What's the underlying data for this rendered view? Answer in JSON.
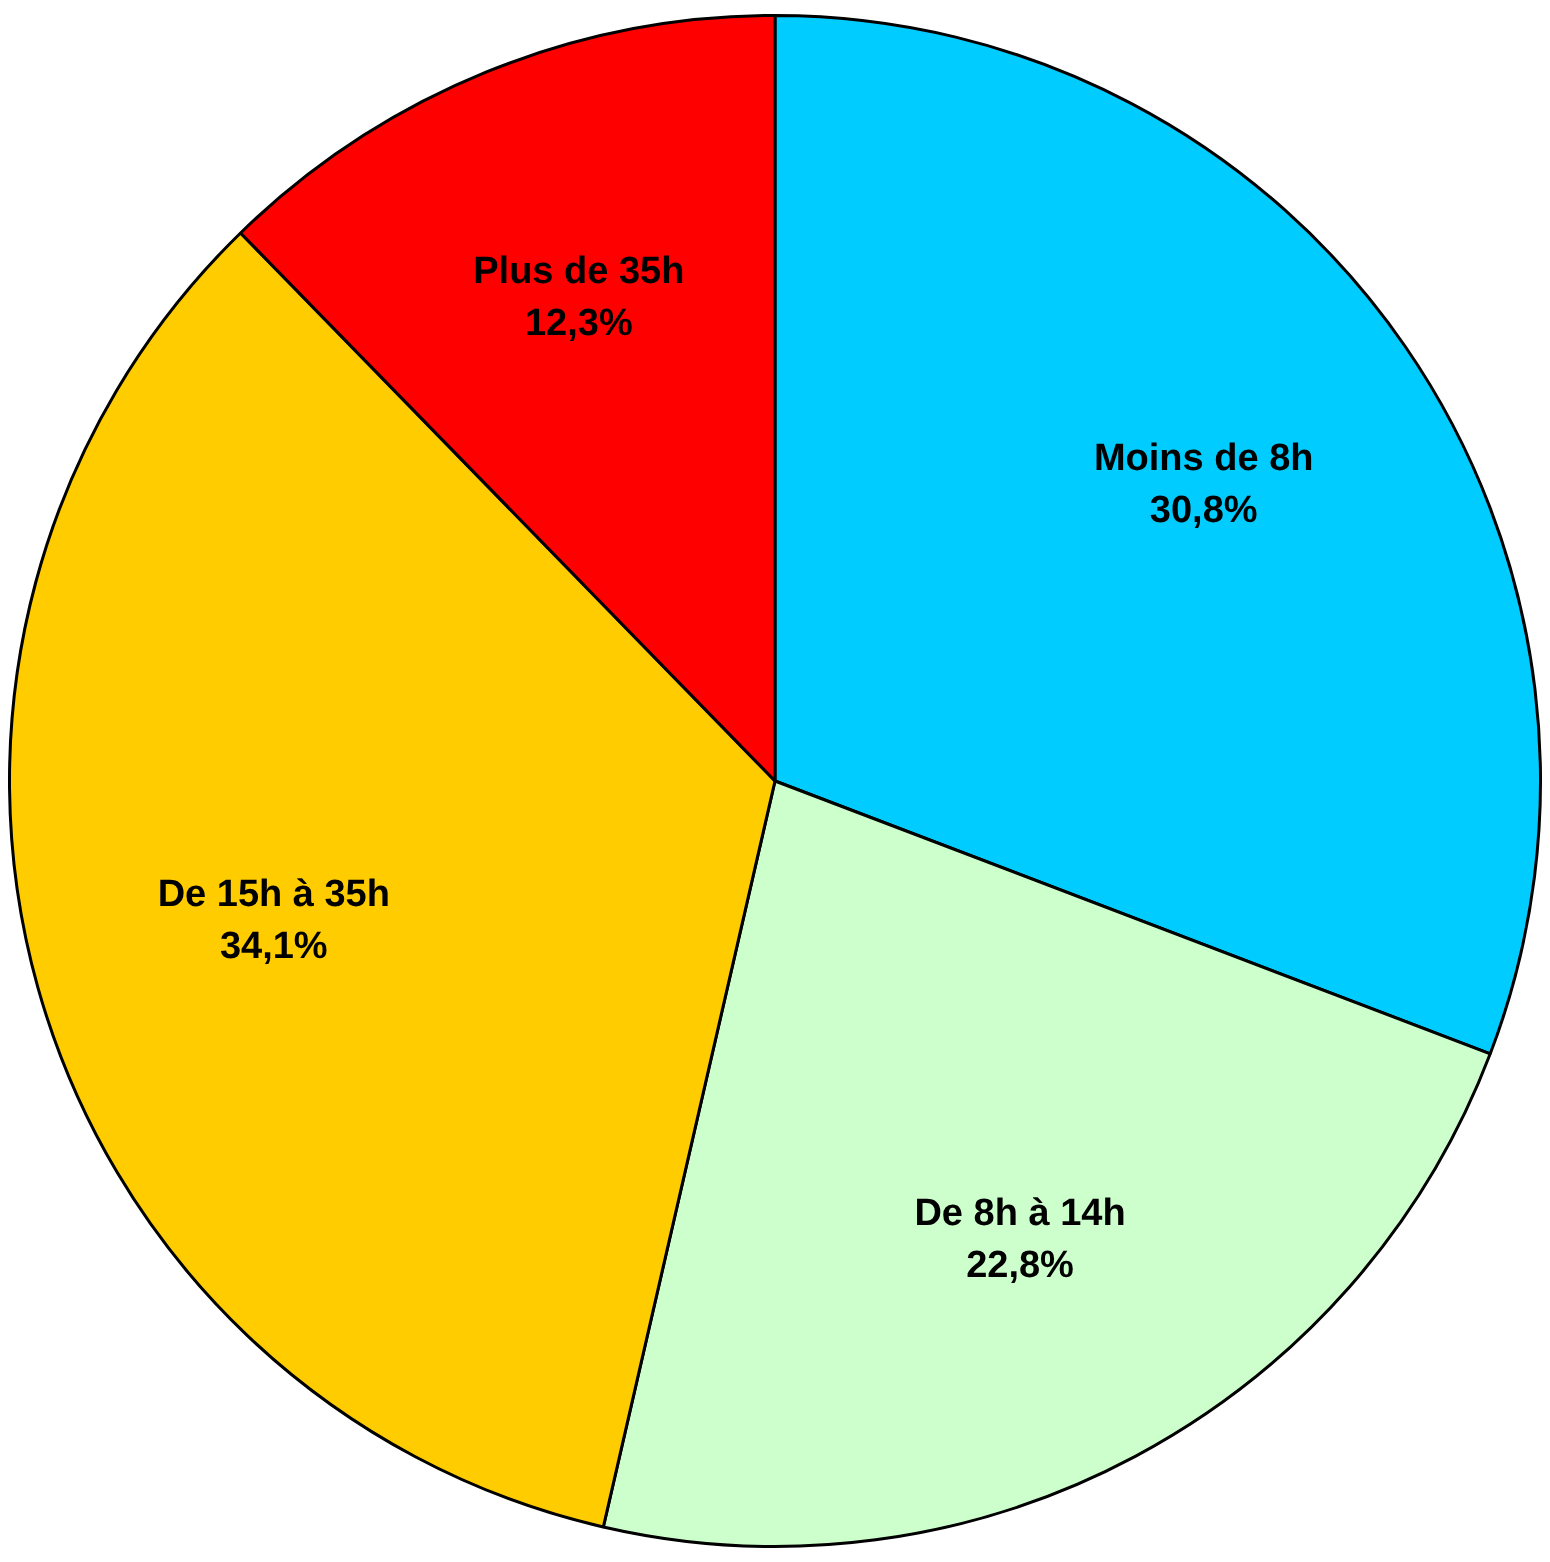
{
  "chart_data": {
    "type": "pie",
    "categories": [
      "Moins de 8h",
      "De 8h à 14h",
      "De 15h à 35h",
      "Plus de 35h"
    ],
    "values": [
      30.8,
      22.8,
      34.1,
      12.3
    ],
    "colors": [
      "#00ccff",
      "#ccffcc",
      "#ffcc00",
      "#ff0000"
    ],
    "value_labels": [
      "30,8%",
      "22,8%",
      "34,1%",
      "12,3%"
    ],
    "legend": false
  }
}
